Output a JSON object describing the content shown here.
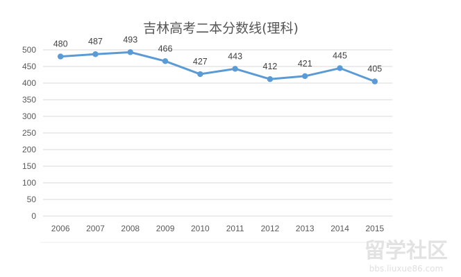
{
  "chart_data": {
    "type": "line",
    "title": "吉林高考二本分数线(理科)",
    "xlabel": "",
    "ylabel": "",
    "categories": [
      "2006",
      "2007",
      "2008",
      "2009",
      "2010",
      "2011",
      "2012",
      "2013",
      "2014",
      "2015"
    ],
    "values": [
      480,
      487,
      493,
      466,
      427,
      443,
      412,
      421,
      445,
      405
    ],
    "data_labels": [
      "480",
      "487",
      "493",
      "466",
      "427",
      "443",
      "412",
      "421",
      "445",
      "405"
    ],
    "ylim": [
      0,
      500
    ],
    "y_ticks": [
      "500",
      "450",
      "400",
      "350",
      "300",
      "250",
      "200",
      "150",
      "100",
      "50",
      "0"
    ],
    "grid": true,
    "legend": "none",
    "line_color": "#5b9bd5",
    "grid_color": "#d9d9d9"
  },
  "watermark": {
    "main": "留学社区",
    "sub": "bbs.liuxue86.com"
  }
}
